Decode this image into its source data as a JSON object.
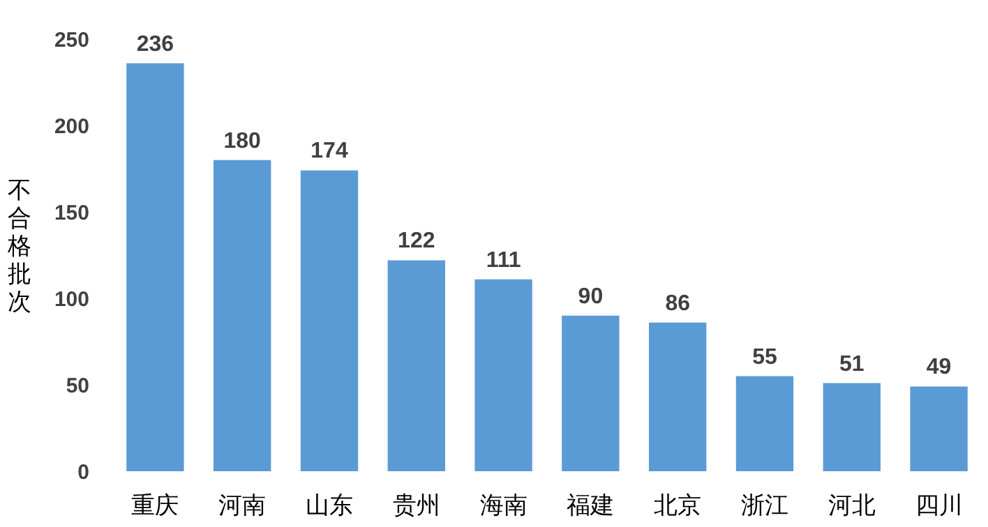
{
  "chart_data": {
    "type": "bar",
    "ylabel": "不合格批次",
    "categories": [
      "重庆",
      "河南",
      "山东",
      "贵州",
      "海南",
      "福建",
      "北京",
      "浙江",
      "河北",
      "四川"
    ],
    "values": [
      236,
      180,
      174,
      122,
      111,
      90,
      86,
      55,
      51,
      49
    ],
    "color": "#5b9bd5",
    "ylim": [
      0,
      250
    ],
    "yticks": [
      0,
      50,
      100,
      150,
      200,
      250
    ],
    "grid": false,
    "data_labels": true
  }
}
